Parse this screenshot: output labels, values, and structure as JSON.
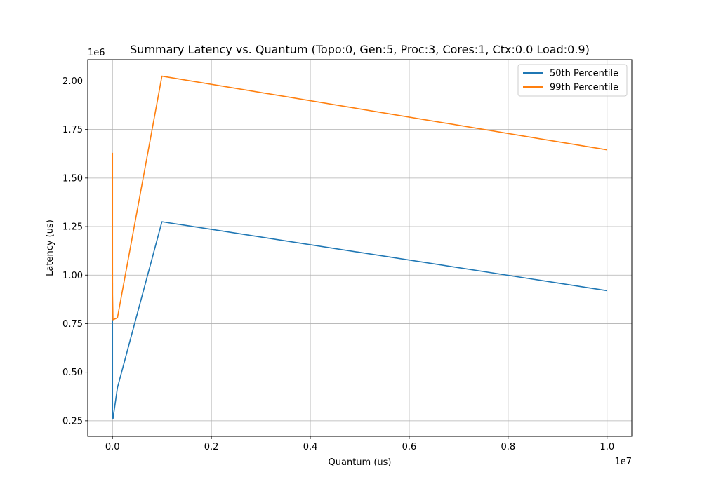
{
  "chart_data": {
    "type": "line",
    "title": "Summary Latency vs. Quantum (Topo:0, Gen:5, Proc:3, Cores:1, Ctx:0.0 Load:0.9)",
    "xlabel": "Quantum (us)",
    "ylabel": "Latency (us)",
    "x_offset_label": "1e7",
    "y_offset_label": "1e6",
    "xlim": [
      -500000,
      10500000
    ],
    "ylim": [
      170000,
      2110000
    ],
    "x_ticks": [
      0,
      2000000,
      4000000,
      6000000,
      8000000,
      10000000
    ],
    "x_tick_labels": [
      "0.0",
      "0.2",
      "0.4",
      "0.6",
      "0.8",
      "1.0"
    ],
    "y_ticks": [
      250000,
      500000,
      750000,
      1000000,
      1250000,
      1500000,
      1750000,
      2000000
    ],
    "y_tick_labels": [
      "0.25",
      "0.50",
      "0.75",
      "1.00",
      "1.25",
      "1.50",
      "1.75",
      "2.00"
    ],
    "grid": true,
    "legend_position": "top-right",
    "x": [
      1,
      10,
      100,
      1000,
      10000,
      100000,
      1000000,
      10000000
    ],
    "series": [
      {
        "name": "50th Percentile",
        "color": "#1f77b4",
        "values": [
          960000,
          780000,
          330000,
          290000,
          260000,
          420000,
          1275000,
          920000
        ]
      },
      {
        "name": "99th Percentile",
        "color": "#ff7f0e",
        "values": [
          1630000,
          1560000,
          1200000,
          900000,
          770000,
          780000,
          2025000,
          1645000
        ]
      }
    ]
  }
}
